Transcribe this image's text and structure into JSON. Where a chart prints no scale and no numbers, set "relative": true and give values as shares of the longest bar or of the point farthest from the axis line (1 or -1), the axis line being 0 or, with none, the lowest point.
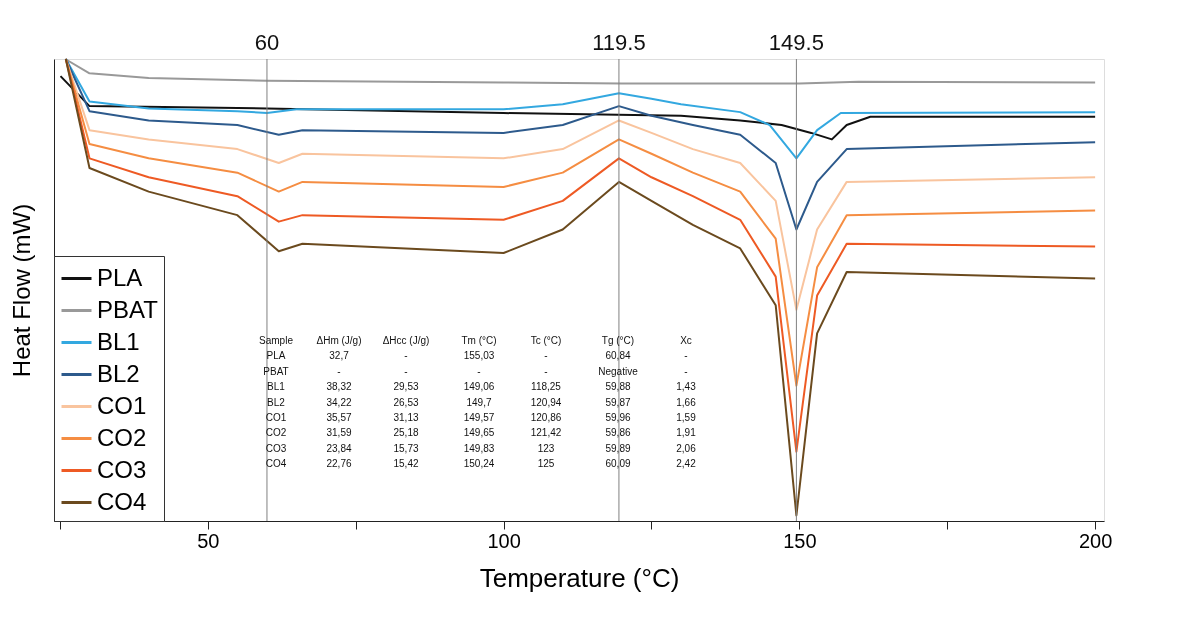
{
  "chart_data": {
    "type": "line",
    "xlabel": "Temperature (°C)",
    "ylabel": "Heat Flow (mW)",
    "relative": true,
    "xlim": [
      24,
      201.5
    ],
    "xticks": [
      {
        "value": 25,
        "label": null
      },
      50,
      {
        "value": 75,
        "label": null
      },
      100,
      {
        "value": 125,
        "label": null
      },
      150,
      {
        "value": 175,
        "label": null
      },
      200
    ],
    "legend": "bottom left",
    "grid": false,
    "line_style": "solid",
    "marker": "none",
    "ref_lines": [
      {
        "axis": "x",
        "value": 60,
        "label": "60",
        "color": "#808080"
      },
      {
        "axis": "x",
        "value": 119.5,
        "label": "119.5",
        "color": "#808080"
      },
      {
        "axis": "x",
        "value": 149.5,
        "label": "149.5",
        "color": "#808080"
      }
    ],
    "series": [
      {
        "name": "PLA",
        "color": "#111111",
        "x": [
          25.1,
          30,
          60,
          100,
          130,
          140,
          147,
          152,
          155.5,
          158,
          162,
          200
        ],
        "values": [
          0.963,
          0.898,
          0.893,
          0.883,
          0.877,
          0.867,
          0.857,
          0.84,
          0.826,
          0.857,
          0.875,
          0.875
        ]
      },
      {
        "name": "PBAT",
        "color": "#999999",
        "x": [
          25.9,
          30,
          40,
          60,
          100,
          120,
          150,
          160,
          200
        ],
        "values": [
          1.0,
          0.969,
          0.959,
          0.953,
          0.949,
          0.947,
          0.947,
          0.951,
          0.949
        ]
      },
      {
        "name": "BL1",
        "color": "#33a8e0",
        "x": [
          26,
          30,
          40,
          55,
          60,
          65,
          100,
          110,
          119.5,
          125,
          130,
          140,
          145,
          149.5,
          153,
          157,
          200
        ],
        "values": [
          1.0,
          0.908,
          0.893,
          0.887,
          0.883,
          0.891,
          0.891,
          0.902,
          0.926,
          0.914,
          0.902,
          0.885,
          0.857,
          0.785,
          0.846,
          0.883,
          0.885
        ]
      },
      {
        "name": "BL2",
        "color": "#2d5a8c",
        "x": [
          26,
          30,
          40,
          55,
          62,
          66,
          100,
          110,
          119.5,
          125,
          132,
          140,
          146,
          149.5,
          153,
          158,
          200
        ],
        "values": [
          1.0,
          0.887,
          0.867,
          0.857,
          0.836,
          0.846,
          0.84,
          0.857,
          0.898,
          0.877,
          0.857,
          0.836,
          0.775,
          0.631,
          0.734,
          0.805,
          0.82
        ]
      },
      {
        "name": "CO1",
        "color": "#f9c49e",
        "x": [
          26,
          30,
          40,
          55,
          62,
          66,
          100,
          110,
          119.5,
          125,
          132,
          140,
          146,
          149.5,
          153,
          158,
          200
        ],
        "values": [
          1.0,
          0.846,
          0.826,
          0.805,
          0.775,
          0.795,
          0.785,
          0.805,
          0.867,
          0.84,
          0.805,
          0.775,
          0.693,
          0.457,
          0.631,
          0.734,
          0.744
        ]
      },
      {
        "name": "CO2",
        "color": "#f58d42",
        "x": [
          26,
          30,
          40,
          55,
          62,
          66,
          100,
          110,
          119.5,
          125,
          132,
          140,
          146,
          149.5,
          153,
          158,
          200
        ],
        "values": [
          1.0,
          0.816,
          0.785,
          0.754,
          0.713,
          0.734,
          0.723,
          0.754,
          0.826,
          0.795,
          0.754,
          0.713,
          0.611,
          0.293,
          0.549,
          0.662,
          0.672
        ]
      },
      {
        "name": "CO3",
        "color": "#ee5a24",
        "x": [
          26,
          30,
          40,
          55,
          62,
          66,
          100,
          110,
          119.5,
          125,
          132,
          140,
          146,
          149.5,
          153,
          158,
          200
        ],
        "values": [
          1.0,
          0.785,
          0.744,
          0.703,
          0.648,
          0.662,
          0.652,
          0.693,
          0.785,
          0.744,
          0.703,
          0.652,
          0.529,
          0.15,
          0.488,
          0.6,
          0.594
        ]
      },
      {
        "name": "CO4",
        "color": "#6b4a1e",
        "x": [
          26,
          30,
          40,
          55,
          62,
          66,
          100,
          110,
          119.5,
          125,
          132,
          140,
          146,
          149.5,
          153,
          158,
          200
        ],
        "values": [
          1.0,
          0.764,
          0.713,
          0.662,
          0.584,
          0.6,
          0.58,
          0.631,
          0.734,
          0.693,
          0.641,
          0.59,
          0.467,
          0.012,
          0.406,
          0.539,
          0.525
        ]
      }
    ],
    "annotations": [
      "Sample",
      "ΔHm (J/g)",
      "ΔHcc (J/g)",
      "Tm (°C)",
      "Tc (°C)",
      "Tg (°C)",
      "Xc",
      "PLA",
      "32,7",
      "-",
      "155,03",
      "-",
      "60,84",
      "-",
      "PBAT",
      "-",
      "-",
      "-",
      "-",
      "Negative",
      "-",
      "BL1",
      "38,32",
      "29,53",
      "149,06",
      "118,25",
      "59,88",
      "1,43",
      "BL2",
      "34,22",
      "26,53",
      "149,7",
      "120,94",
      "59,87",
      "1,66",
      "CO1",
      "35,57",
      "31,13",
      "149,57",
      "120,86",
      "59,96",
      "1,59",
      "CO2",
      "31,59",
      "25,18",
      "149,65",
      "121,42",
      "59,86",
      "1,91",
      "CO3",
      "23,84",
      "15,73",
      "149,83",
      "123",
      "59,89",
      "2,06",
      "CO4",
      "22,76",
      "15,42",
      "150,24",
      "125",
      "60,09",
      "2,42"
    ]
  }
}
